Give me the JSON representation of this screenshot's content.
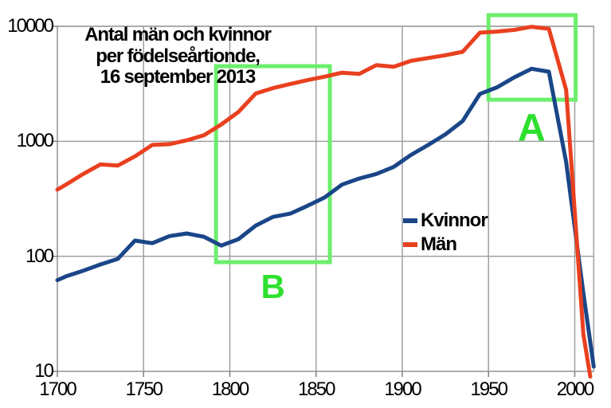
{
  "title": {
    "lines": [
      "Antal män och kvinnor",
      "per födelseårtionde,",
      "16 september 2013"
    ]
  },
  "legend": {
    "entries": [
      {
        "label": "Kvinnor",
        "color": "#1a4688"
      },
      {
        "label": "Män",
        "color": "#e9401f"
      }
    ]
  },
  "chart_data": {
    "type": "line",
    "title": "Antal män och kvinnor per födelseårtionde, 16 september 2013",
    "y_scale": "log",
    "xlim": [
      1700,
      2011
    ],
    "ylim": [
      10,
      10000
    ],
    "x_ticks": [
      "1700",
      "1750",
      "1800",
      "1850",
      "1900",
      "1950",
      "2000"
    ],
    "y_ticks": [
      "10",
      "100",
      "1000",
      "10000"
    ],
    "grid": true,
    "grid_color": "#a0a0a0",
    "tick_color": "#808080",
    "series": [
      {
        "name": "Kvinnor",
        "color": "#1a4688",
        "points": [
          [
            1700,
            62
          ],
          [
            1705,
            67
          ],
          [
            1715,
            75
          ],
          [
            1725,
            85
          ],
          [
            1735,
            95
          ],
          [
            1745,
            137
          ],
          [
            1755,
            130
          ],
          [
            1765,
            150
          ],
          [
            1775,
            158
          ],
          [
            1785,
            148
          ],
          [
            1795,
            124
          ],
          [
            1805,
            141
          ],
          [
            1815,
            185
          ],
          [
            1825,
            220
          ],
          [
            1835,
            235
          ],
          [
            1845,
            275
          ],
          [
            1855,
            325
          ],
          [
            1865,
            420
          ],
          [
            1875,
            475
          ],
          [
            1885,
            520
          ],
          [
            1895,
            600
          ],
          [
            1905,
            760
          ],
          [
            1915,
            930
          ],
          [
            1925,
            1150
          ],
          [
            1935,
            1500
          ],
          [
            1945,
            2580
          ],
          [
            1955,
            2950
          ],
          [
            1965,
            3600
          ],
          [
            1975,
            4270
          ],
          [
            1985,
            4030
          ],
          [
            1995,
            660
          ],
          [
            2005,
            48
          ],
          [
            2011,
            11
          ]
        ]
      },
      {
        "name": "Män",
        "color": "#e9401f",
        "points": [
          [
            1700,
            380
          ],
          [
            1705,
            420
          ],
          [
            1715,
            520
          ],
          [
            1725,
            630
          ],
          [
            1735,
            615
          ],
          [
            1745,
            740
          ],
          [
            1755,
            930
          ],
          [
            1765,
            945
          ],
          [
            1775,
            1020
          ],
          [
            1785,
            1130
          ],
          [
            1795,
            1400
          ],
          [
            1805,
            1800
          ],
          [
            1815,
            2600
          ],
          [
            1825,
            2900
          ],
          [
            1835,
            3150
          ],
          [
            1845,
            3400
          ],
          [
            1855,
            3650
          ],
          [
            1865,
            3950
          ],
          [
            1875,
            3850
          ],
          [
            1885,
            4600
          ],
          [
            1895,
            4450
          ],
          [
            1905,
            5000
          ],
          [
            1915,
            5300
          ],
          [
            1925,
            5600
          ],
          [
            1935,
            6000
          ],
          [
            1945,
            8800
          ],
          [
            1955,
            9000
          ],
          [
            1965,
            9300
          ],
          [
            1975,
            9900
          ],
          [
            1985,
            9500
          ],
          [
            1995,
            2800
          ],
          [
            2005,
            21
          ],
          [
            2009,
            9
          ]
        ]
      }
    ],
    "annotations": [
      {
        "label": "A",
        "box_color": "#6cef6c",
        "label_color": "#2ee02e",
        "box_years": [
          1950,
          2000.5
        ],
        "box_values": [
          2300,
          12500
        ],
        "label_year": 1975,
        "label_value": 1300,
        "label_size": 48
      },
      {
        "label": "B",
        "box_color": "#6cef6c",
        "label_color": "#2ee02e",
        "box_years": [
          1792,
          1858
        ],
        "box_values": [
          89,
          4500
        ],
        "label_year": 1825,
        "label_value": 54,
        "label_size": 42
      }
    ]
  }
}
